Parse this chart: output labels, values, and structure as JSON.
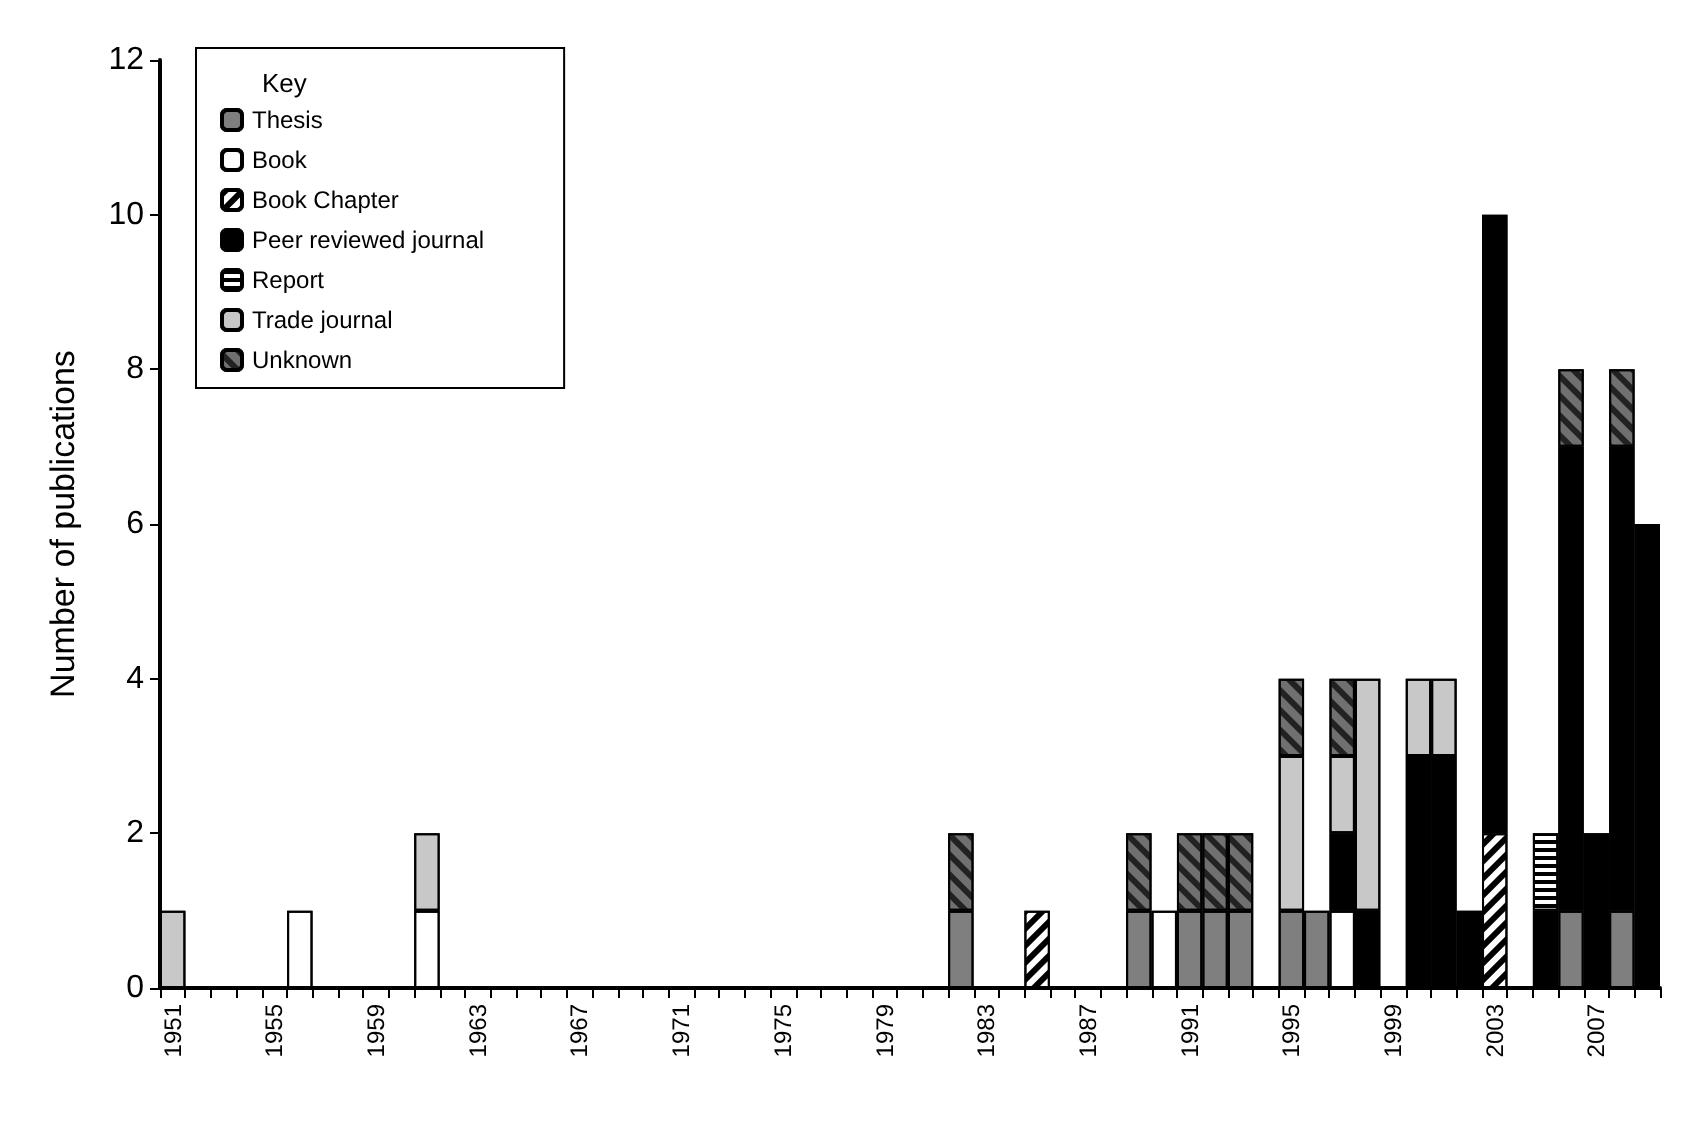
{
  "chart_data": {
    "type": "bar",
    "stacked": true,
    "ylabel": "Number of publications",
    "legend_title": "Key",
    "legend": "top left",
    "grid": false,
    "categories": [
      "1951",
      null,
      null,
      null,
      "1955",
      null,
      null,
      null,
      "1959",
      null,
      null,
      null,
      "1963",
      null,
      null,
      null,
      "1967",
      null,
      null,
      null,
      "1971",
      null,
      null,
      null,
      "1975",
      null,
      null,
      null,
      "1979",
      null,
      null,
      null,
      "1983",
      null,
      null,
      null,
      "1987",
      null,
      null,
      null,
      "1991",
      null,
      null,
      null,
      "1995",
      null,
      null,
      null,
      "1999",
      null,
      null,
      null,
      "2003",
      null,
      null,
      null,
      "2007",
      null,
      null
    ],
    "ylim": [
      0,
      12
    ],
    "yticks": [
      0,
      2,
      4,
      6,
      8,
      10,
      12
    ],
    "series": [
      {
        "name": "Thesis",
        "color": "#7f7f7f",
        "values": [
          0,
          0,
          0,
          0,
          0,
          0,
          0,
          0,
          0,
          0,
          0,
          0,
          0,
          0,
          0,
          0,
          0,
          0,
          0,
          0,
          0,
          0,
          0,
          0,
          0,
          0,
          0,
          0,
          0,
          0,
          0,
          1,
          0,
          0,
          0,
          0,
          0,
          0,
          1,
          0,
          1,
          1,
          1,
          0,
          1,
          1,
          0,
          0,
          0,
          0,
          0,
          0,
          0,
          0,
          0,
          1,
          0,
          1,
          0
        ]
      },
      {
        "name": "Book",
        "color": "#ffffff",
        "values": [
          0,
          0,
          0,
          0,
          0,
          1,
          0,
          0,
          0,
          0,
          1,
          0,
          0,
          0,
          0,
          0,
          0,
          0,
          0,
          0,
          0,
          0,
          0,
          0,
          0,
          0,
          0,
          0,
          0,
          0,
          0,
          0,
          0,
          0,
          0,
          0,
          0,
          0,
          0,
          1,
          0,
          0,
          0,
          0,
          0,
          0,
          1,
          0,
          0,
          0,
          0,
          0,
          0,
          0,
          0,
          0,
          0,
          0,
          0
        ]
      },
      {
        "name": "Book Chapter",
        "color": "#ffffff",
        "values": [
          0,
          0,
          0,
          0,
          0,
          0,
          0,
          0,
          0,
          0,
          0,
          0,
          0,
          0,
          0,
          0,
          0,
          0,
          0,
          0,
          0,
          0,
          0,
          0,
          0,
          0,
          0,
          0,
          0,
          0,
          0,
          0,
          0,
          0,
          1,
          0,
          0,
          0,
          0,
          0,
          0,
          0,
          0,
          0,
          0,
          0,
          0,
          0,
          0,
          0,
          0,
          0,
          2,
          0,
          0,
          0,
          0,
          0,
          0
        ]
      },
      {
        "name": "Peer reviewed journal",
        "color": "#000000",
        "values": [
          0,
          0,
          0,
          0,
          0,
          0,
          0,
          0,
          0,
          0,
          0,
          0,
          0,
          0,
          0,
          0,
          0,
          0,
          0,
          0,
          0,
          0,
          0,
          0,
          0,
          0,
          0,
          0,
          0,
          0,
          0,
          0,
          0,
          0,
          0,
          0,
          0,
          0,
          0,
          0,
          0,
          0,
          0,
          0,
          0,
          0,
          1,
          1,
          0,
          3,
          3,
          1,
          8,
          0,
          1,
          6,
          2,
          6,
          6
        ]
      },
      {
        "name": "Report",
        "color": "#ffffff",
        "values": [
          0,
          0,
          0,
          0,
          0,
          0,
          0,
          0,
          0,
          0,
          0,
          0,
          0,
          0,
          0,
          0,
          0,
          0,
          0,
          0,
          0,
          0,
          0,
          0,
          0,
          0,
          0,
          0,
          0,
          0,
          0,
          0,
          0,
          0,
          0,
          0,
          0,
          0,
          0,
          0,
          0,
          0,
          0,
          0,
          0,
          0,
          0,
          0,
          0,
          0,
          0,
          0,
          0,
          0,
          1,
          0,
          0,
          0,
          0
        ]
      },
      {
        "name": "Trade journal",
        "color": "#c8c8c8",
        "values": [
          1,
          0,
          0,
          0,
          0,
          0,
          0,
          0,
          0,
          0,
          1,
          0,
          0,
          0,
          0,
          0,
          0,
          0,
          0,
          0,
          0,
          0,
          0,
          0,
          0,
          0,
          0,
          0,
          0,
          0,
          0,
          0,
          0,
          0,
          0,
          0,
          0,
          0,
          0,
          0,
          0,
          0,
          0,
          0,
          2,
          0,
          1,
          3,
          0,
          1,
          1,
          0,
          0,
          0,
          0,
          0,
          0,
          0,
          0
        ]
      },
      {
        "name": "Unknown",
        "color": "#707070",
        "values": [
          0,
          0,
          0,
          0,
          0,
          0,
          0,
          0,
          0,
          0,
          0,
          0,
          0,
          0,
          0,
          0,
          0,
          0,
          0,
          0,
          0,
          0,
          0,
          0,
          0,
          0,
          0,
          0,
          0,
          0,
          0,
          1,
          0,
          0,
          0,
          0,
          0,
          0,
          1,
          0,
          1,
          1,
          1,
          0,
          1,
          0,
          1,
          0,
          0,
          0,
          0,
          0,
          0,
          0,
          0,
          1,
          0,
          1,
          0
        ]
      }
    ]
  }
}
